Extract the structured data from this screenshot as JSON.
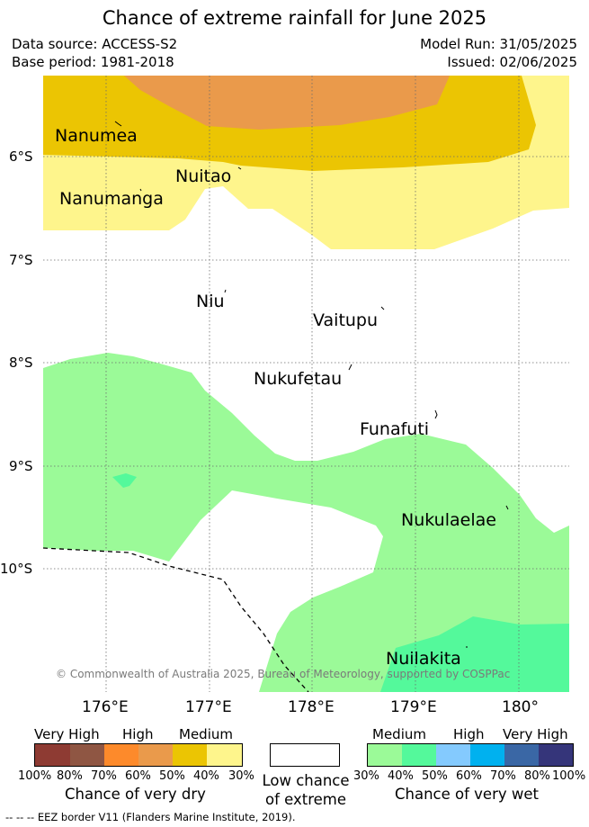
{
  "title": "Chance of extreme rainfall for June 2025",
  "meta": {
    "data_source": "Data source: ACCESS-S2",
    "base_period": "Base period: 1981-2018",
    "model_run": "Model Run: 31/05/2025",
    "issued": "Issued: 02/06/2025"
  },
  "axes": {
    "lat_labels": [
      "6°S",
      "7°S",
      "8°S",
      "9°S",
      "10°S"
    ],
    "lon_labels": [
      "176°E",
      "177°E",
      "178°E",
      "179°E",
      "180°"
    ]
  },
  "islands": [
    "Nanumea",
    "Nuitao",
    "Nanumanga",
    "Niu",
    "Vaitupu",
    "Nukufetau",
    "Funafuti",
    "Nukulaelae",
    "Nuilakita"
  ],
  "copyright": "© Commonwealth of Australia 2025, Bureau of Meteorology, supported by COSPPac",
  "legend": {
    "dry": {
      "levels": [
        "Very High",
        "High",
        "Medium"
      ],
      "ticks": [
        "100%",
        "80%",
        "70%",
        "60%",
        "50%",
        "40%",
        "30%"
      ],
      "colors": [
        "#8e3b33",
        "#8f5643",
        "#fd8a2b",
        "#ea9a4b",
        "#ebc503",
        "#fef58c"
      ],
      "caption": "Chance of very dry"
    },
    "low": {
      "caption_line1": "Low chance",
      "caption_line2": "of extreme",
      "color": "#ffffff"
    },
    "wet": {
      "levels": [
        "Medium",
        "High",
        "Very High"
      ],
      "ticks": [
        "30%",
        "40%",
        "50%",
        "60%",
        "70%",
        "80%",
        "100%"
      ],
      "colors": [
        "#9bfa98",
        "#54f99b",
        "#84cafe",
        "#00b1ef",
        "#3a67a5",
        "#35357a"
      ],
      "caption": "Chance of very wet"
    }
  },
  "eez_note": "--  --  -- EEZ border V11 (Flanders Marine Institute, 2019)."
}
